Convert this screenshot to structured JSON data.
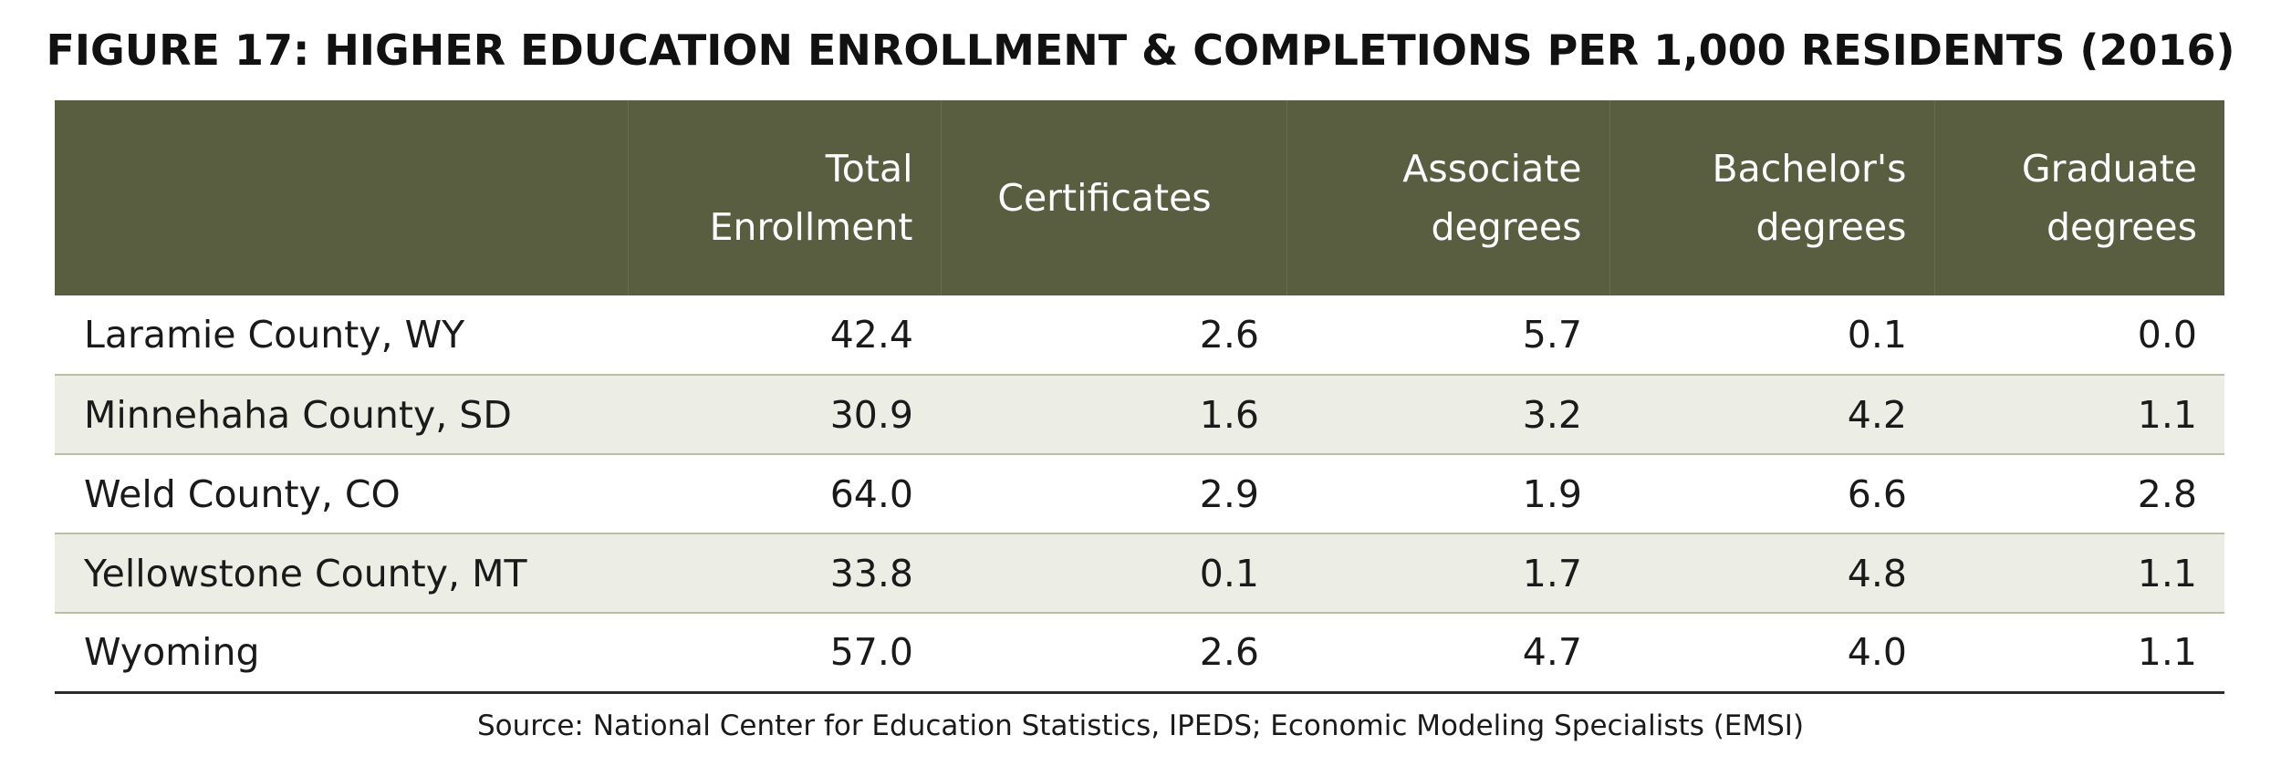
{
  "title": "FIGURE 17: HIGHER EDUCATION ENROLLMENT & COMPLETIONS PER 1,000 RESIDENTS (2016)",
  "source": "Source: National Center for Education Statistics, IPEDS; Economic Modeling Specialists (EMSI)",
  "colors": {
    "header_bg": "#585e3f",
    "alt_row_bg": "#eceee5",
    "row_divider": "#b9bfa3"
  },
  "chart_data": {
    "type": "table",
    "title": "FIGURE 17: HIGHER EDUCATION ENROLLMENT & COMPLETIONS PER 1,000 RESIDENTS (2016)",
    "columns": [
      {
        "line1": "",
        "line2": ""
      },
      {
        "line1": "Total",
        "line2": "Enrollment"
      },
      {
        "line1": "Certificates",
        "line2": ""
      },
      {
        "line1": "Associate",
        "line2": "degrees"
      },
      {
        "line1": "Bachelor's",
        "line2": "degrees"
      },
      {
        "line1": "Graduate",
        "line2": "degrees"
      }
    ],
    "rows": [
      {
        "label": "Laramie County, WY",
        "values": [
          "42.4",
          "2.6",
          "5.7",
          "0.1",
          "0.0"
        ]
      },
      {
        "label": "Minnehaha County, SD",
        "values": [
          "30.9",
          "1.6",
          "3.2",
          "4.2",
          "1.1"
        ]
      },
      {
        "label": "Weld County, CO",
        "values": [
          "64.0",
          "2.9",
          "1.9",
          "6.6",
          "2.8"
        ]
      },
      {
        "label": "Yellowstone County, MT",
        "values": [
          "33.8",
          "0.1",
          "1.7",
          "4.8",
          "1.1"
        ]
      },
      {
        "label": "Wyoming",
        "values": [
          "57.0",
          "2.6",
          "4.7",
          "4.0",
          "1.1"
        ]
      }
    ]
  }
}
